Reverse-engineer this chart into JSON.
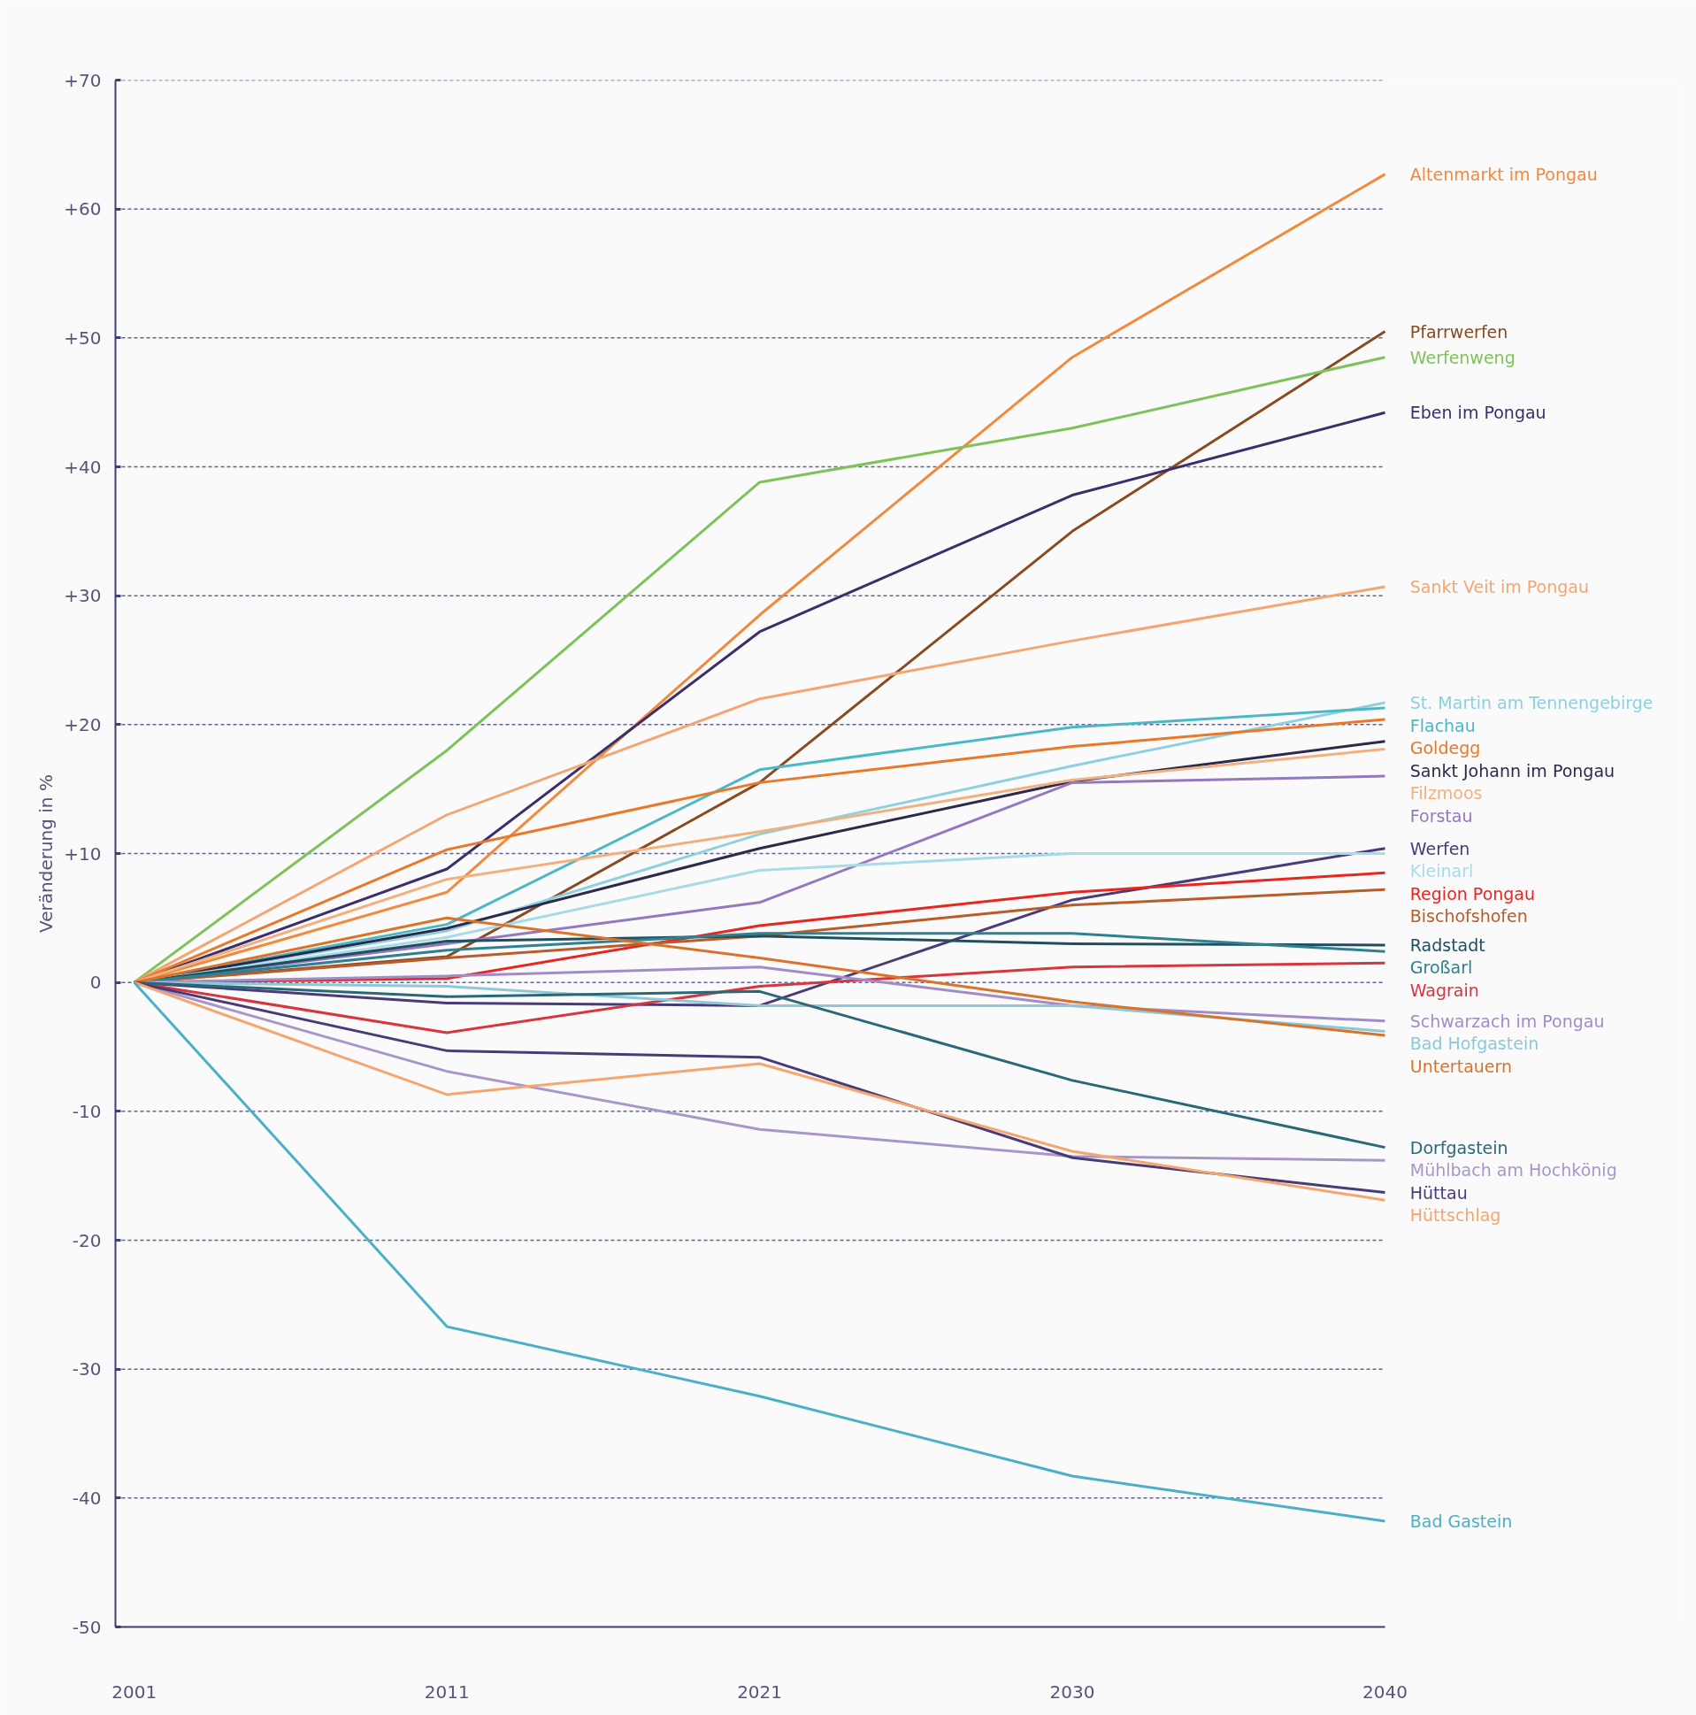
{
  "chart_data": {
    "type": "line",
    "ylabel": "Veränderung in %",
    "categories": [
      "2001",
      "2011",
      "2021",
      "2030",
      "2040"
    ],
    "ylim": [
      -50,
      70
    ],
    "yticks": [
      {
        "value": 70,
        "label": "+70"
      },
      {
        "value": 60,
        "label": "+60"
      },
      {
        "value": 50,
        "label": "+50"
      },
      {
        "value": 40,
        "label": "+40"
      },
      {
        "value": 30,
        "label": "+30"
      },
      {
        "value": 20,
        "label": "+20"
      },
      {
        "value": 10,
        "label": "+10"
      },
      0,
      -10,
      -20,
      -30,
      -40,
      -50
    ],
    "grid": "y",
    "legend": false,
    "line_style": "solid",
    "marker": "none",
    "series": [
      {
        "name": "Altenmarkt im Pongau",
        "color": "#f08a3c",
        "values": [
          0,
          7,
          28.5,
          48.5,
          62.7
        ]
      },
      {
        "name": "Pfarrwerfen",
        "color": "#8b4a1e",
        "values": [
          0,
          2,
          15.5,
          35,
          50.5
        ]
      },
      {
        "name": "Werfenweng",
        "color": "#7dc35a",
        "values": [
          0,
          18,
          38.8,
          43,
          48.5
        ]
      },
      {
        "name": "Eben im Pongau",
        "color": "#3d2e6b",
        "values": [
          0,
          8.8,
          27.2,
          37.8,
          44.2
        ]
      },
      {
        "name": "Sankt Veit im Pongau",
        "color": "#f4a672",
        "values": [
          0,
          13,
          22,
          26.5,
          30.7
        ]
      },
      {
        "name": "St. Martin am Tennengebirge",
        "color": "#8fd0e0",
        "values": [
          0,
          4,
          11.5,
          16.8,
          21.7
        ]
      },
      {
        "name": "Flachau",
        "color": "#4bb8c8",
        "values": [
          0,
          4.5,
          16.5,
          19.8,
          21.3
        ]
      },
      {
        "name": "Goldegg",
        "color": "#e8782a",
        "values": [
          0,
          10.3,
          15.5,
          18.3,
          20.4
        ]
      },
      {
        "name": "Sankt Johann im Pongau",
        "color": "#2c2a4a",
        "values": [
          0,
          4.2,
          10.4,
          15.6,
          18.7
        ]
      },
      {
        "name": "Filzmoos",
        "color": "#f2b07e",
        "values": [
          0,
          8,
          11.7,
          15.7,
          18.1
        ]
      },
      {
        "name": "Forstau",
        "color": "#9478c0",
        "values": [
          0,
          3,
          6.2,
          15.5,
          16
        ]
      },
      {
        "name": "Werfen",
        "color": "#4a3a7a",
        "values": [
          0,
          -1.6,
          -1.8,
          6.4,
          10.4
        ]
      },
      {
        "name": "Kleinarl",
        "color": "#a8dbe8",
        "values": [
          0,
          3.5,
          8.7,
          10,
          10
        ]
      },
      {
        "name": "Region Pongau",
        "color": "#e8251f",
        "values": [
          0,
          0.3,
          4.4,
          7,
          8.5
        ]
      },
      {
        "name": "Bischofshofen",
        "color": "#b85c2a",
        "values": [
          0,
          1.9,
          3.6,
          6,
          7.2
        ]
      },
      {
        "name": "Radstadt",
        "color": "#1f4f5f",
        "values": [
          0,
          3.2,
          3.6,
          3,
          2.9
        ]
      },
      {
        "name": "Großarl",
        "color": "#2f8090",
        "values": [
          0,
          2.5,
          3.8,
          3.8,
          2.4
        ]
      },
      {
        "name": "Wagrain",
        "color": "#d8363e",
        "values": [
          0,
          -3.9,
          -0.3,
          1.2,
          1.5
        ]
      },
      {
        "name": "Schwarzach im Pongau",
        "color": "#a28cc8",
        "values": [
          0,
          0.5,
          1.2,
          -1.8,
          -3
        ]
      },
      {
        "name": "Bad Hofgastein",
        "color": "#8ec8d8",
        "values": [
          0,
          -0.3,
          -1.8,
          -1.8,
          -3.8
        ]
      },
      {
        "name": "Untertauern",
        "color": "#d9732a",
        "values": [
          0,
          5,
          1.9,
          -1.5,
          -4.1
        ]
      },
      {
        "name": "Dorfgastein",
        "color": "#2a6878",
        "values": [
          0,
          -1.1,
          -0.7,
          -7.6,
          -12.8
        ]
      },
      {
        "name": "Mühlbach am Hochkönig",
        "color": "#a896c8",
        "values": [
          0,
          -6.9,
          -11.4,
          -13.5,
          -13.8
        ]
      },
      {
        "name": "Hüttau",
        "color": "#4b3a78",
        "values": [
          0,
          -5.3,
          -5.8,
          -13.6,
          -16.3
        ]
      },
      {
        "name": "Hüttschlag",
        "color": "#f4a66e",
        "values": [
          0,
          -8.7,
          -6.3,
          -13.1,
          -16.9
        ]
      },
      {
        "name": "Bad Gastein",
        "color": "#4ab0c8",
        "values": [
          0,
          -26.7,
          -32.1,
          -38.3,
          -41.8
        ]
      }
    ]
  }
}
